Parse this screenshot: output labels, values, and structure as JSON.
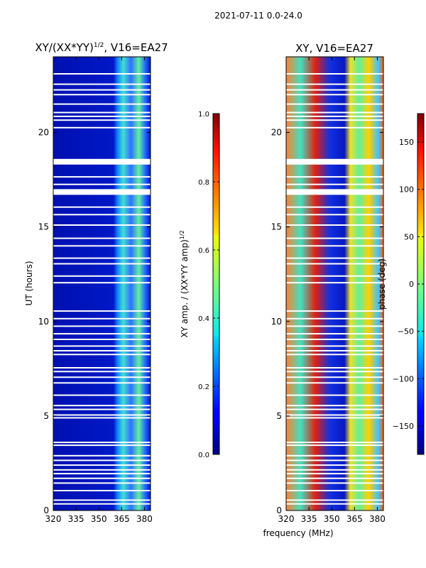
{
  "suptitle": "2021-07-11 0.0-24.0",
  "chart_data": [
    {
      "type": "heatmap",
      "title_main": "XY/(XX*YY)",
      "title_sup": "1/2",
      "title_tail": ", V16=EA27",
      "xlabel": "",
      "ylabel": "UT (hours)",
      "xlim": [
        320,
        384
      ],
      "ylim": [
        0,
        24
      ],
      "xticks": [
        320,
        335,
        350,
        365,
        380
      ],
      "yticks": [
        0,
        5,
        10,
        15,
        20
      ],
      "colorbar": {
        "label_main": "XY amp. / (XX*YY amp)",
        "label_sup": "1/2",
        "range": [
          0.0,
          1.0
        ],
        "ticks": [
          "0.0",
          "0.2",
          "0.4",
          "0.6",
          "0.8",
          "1.0"
        ]
      }
    },
    {
      "type": "heatmap",
      "title_main": "XY, V16=EA27",
      "xlabel": "frequency (MHz)",
      "ylabel": "",
      "xlim": [
        320,
        384
      ],
      "ylim": [
        0,
        24
      ],
      "xticks": [
        320,
        335,
        350,
        365,
        380
      ],
      "yticks": [
        0,
        5,
        10,
        15,
        20
      ],
      "colorbar": {
        "label_main": "phase (deg)",
        "range": [
          -180,
          180
        ],
        "ticks": [
          "−150",
          "−100",
          "−50",
          "0",
          "50",
          "100",
          "150"
        ]
      }
    }
  ],
  "gaps_hours": [
    0.35,
    0.55,
    1.05,
    1.45,
    1.7,
    1.95,
    2.15,
    2.4,
    2.65,
    2.9,
    3.45,
    3.6,
    4.9,
    5.05,
    5.35,
    5.55,
    6.1,
    6.75,
    7.05,
    7.35,
    7.55,
    8.25,
    8.45,
    8.7,
    9.05,
    9.35,
    9.75,
    10.15,
    10.55,
    12.05,
    12.4,
    13.05,
    13.35,
    14.0,
    14.4,
    15.1,
    15.65,
    16.05,
    17.25,
    17.65,
    20.25,
    20.65,
    20.85,
    21.05,
    21.5,
    22.0,
    22.25,
    22.55,
    23.1
  ]
}
